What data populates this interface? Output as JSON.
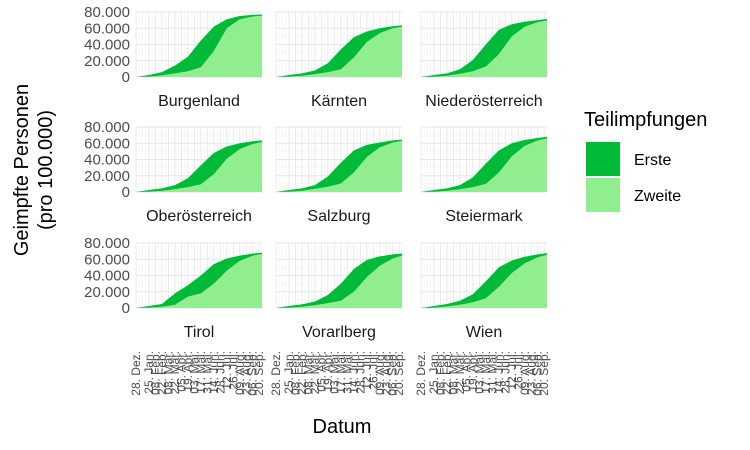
{
  "chart_data": {
    "type": "area",
    "facet_layout": "3x3",
    "xlabel": "Datum",
    "ylabel_lines": [
      "Geimpfte Personen",
      "(pro 100.000)"
    ],
    "ylim": [
      0,
      80000
    ],
    "y_ticks": [
      0,
      20000,
      40000,
      60000,
      80000
    ],
    "y_tick_labels": [
      "0",
      "20.000",
      "40.000",
      "60.000",
      "80.000"
    ],
    "x_range": [
      "2020-12-28",
      "2021-09-26"
    ],
    "x_tick_dates": [
      "2020-12-28",
      "2021-01-25",
      "2021-02-08",
      "2021-02-22",
      "2021-03-08",
      "2021-03-22",
      "2021-04-05",
      "2021-04-19",
      "2021-05-03",
      "2021-05-17",
      "2021-05-31",
      "2021-06-14",
      "2021-06-28",
      "2021-07-12",
      "2021-07-26",
      "2021-08-09",
      "2021-08-23",
      "2021-09-06",
      "2021-09-20"
    ],
    "x_tick_labels": [
      "28. Dez.",
      "25. Jan.",
      "08. Feb.",
      "22. Feb.",
      "08. Mär.",
      "22. Mär.",
      "05. Apr.",
      "19. Apr.",
      "03. Mai.",
      "17. Mai.",
      "31. Mai.",
      "14. Jun.",
      "28. Jun.",
      "12. Jul.",
      "26. Jul.",
      "09. Aug.",
      "23. Aug.",
      "06. Sep.",
      "20. Sep."
    ],
    "grid": true,
    "legend": {
      "title": "Teilimpfungen",
      "position": "right",
      "entries": [
        {
          "label": "Erste",
          "color": "#00BA38"
        },
        {
          "label": "Zweite",
          "color": "#90EE90"
        }
      ]
    },
    "sample_dates": [
      "2020-12-28",
      "2021-01-25",
      "2021-02-22",
      "2021-03-22",
      "2021-04-19",
      "2021-05-17",
      "2021-06-14",
      "2021-07-12",
      "2021-08-09",
      "2021-09-06",
      "2021-09-26"
    ],
    "panels": [
      {
        "name": "Burgenland",
        "first": [
          0,
          2500,
          6000,
          14000,
          25000,
          45000,
          62000,
          71000,
          75000,
          76500,
          77000
        ],
        "second": [
          0,
          500,
          2000,
          4500,
          7000,
          12000,
          32000,
          60000,
          71000,
          74500,
          75500
        ]
      },
      {
        "name": "Kärnten",
        "first": [
          0,
          2500,
          4500,
          8000,
          17000,
          34000,
          49000,
          56000,
          60000,
          62500,
          63500
        ],
        "second": [
          0,
          500,
          1500,
          3500,
          6000,
          9500,
          24000,
          43000,
          54000,
          60000,
          62000
        ]
      },
      {
        "name": "Niederösterreich",
        "first": [
          0,
          2500,
          4500,
          9500,
          21000,
          40000,
          58000,
          65000,
          68000,
          70000,
          71500
        ],
        "second": [
          0,
          500,
          1500,
          4000,
          7000,
          13000,
          28000,
          50000,
          62000,
          67500,
          69500
        ]
      },
      {
        "name": "Oberösterreich",
        "first": [
          0,
          2500,
          4500,
          8500,
          17000,
          33000,
          48000,
          56000,
          60000,
          62500,
          63500
        ],
        "second": [
          0,
          500,
          1500,
          3500,
          6000,
          9500,
          22000,
          41000,
          53000,
          59000,
          61500
        ]
      },
      {
        "name": "Salzburg",
        "first": [
          0,
          2500,
          4500,
          8500,
          19000,
          36000,
          51000,
          58000,
          61000,
          63500,
          64500
        ],
        "second": [
          0,
          500,
          1500,
          4000,
          6500,
          10500,
          24000,
          43000,
          55000,
          61000,
          63000
        ]
      },
      {
        "name": "Steiermark",
        "first": [
          0,
          2500,
          4500,
          8500,
          18000,
          35000,
          51000,
          60000,
          64000,
          66500,
          68000
        ],
        "second": [
          0,
          500,
          1500,
          3500,
          6000,
          10000,
          24000,
          44000,
          57000,
          63500,
          66000
        ]
      },
      {
        "name": "Tirol",
        "first": [
          0,
          2500,
          5000,
          18000,
          28000,
          40000,
          54000,
          61000,
          64500,
          67000,
          68000
        ],
        "second": [
          0,
          500,
          1500,
          4000,
          14000,
          18000,
          30000,
          46000,
          58000,
          64500,
          66500
        ]
      },
      {
        "name": "Vorarlberg",
        "first": [
          0,
          2500,
          4500,
          8000,
          16000,
          30000,
          48000,
          59000,
          63500,
          66000,
          67000
        ],
        "second": [
          0,
          500,
          1500,
          3500,
          6000,
          9000,
          20000,
          38000,
          52000,
          61000,
          64500
        ]
      },
      {
        "name": "Wien",
        "first": [
          0,
          2500,
          5000,
          9000,
          17000,
          33000,
          50000,
          58500,
          63000,
          66000,
          67500
        ],
        "second": [
          0,
          500,
          2000,
          4000,
          7000,
          12000,
          26000,
          43000,
          55000,
          62500,
          65500
        ]
      }
    ]
  }
}
